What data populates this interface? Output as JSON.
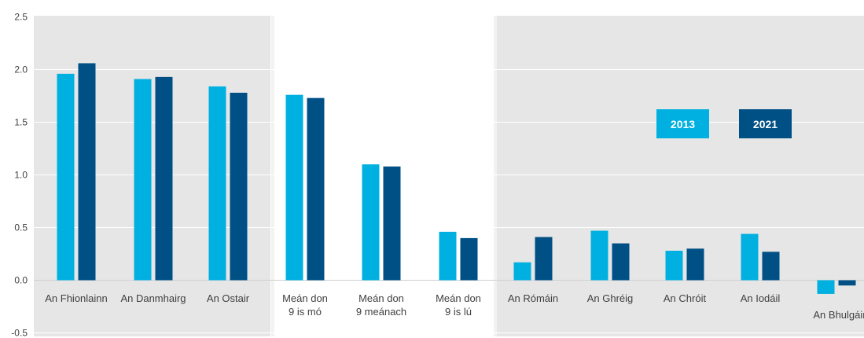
{
  "chart_data": {
    "type": "bar",
    "categories": [
      [
        "An Fhionlainn"
      ],
      [
        "An Danmhairg"
      ],
      [
        "An Ostair"
      ],
      [
        "Meán don",
        "9 is mó"
      ],
      [
        "Meán don",
        "9 meánach"
      ],
      [
        "Meán don",
        "9 is lú"
      ],
      [
        "An Rómáin"
      ],
      [
        "An Ghréig"
      ],
      [
        "An Chróit"
      ],
      [
        "An Iodáil"
      ],
      [
        "An Bhulgáir"
      ]
    ],
    "series": [
      {
        "name": "2013",
        "color": "#00b0e0",
        "values": [
          1.96,
          1.91,
          1.84,
          1.76,
          1.1,
          0.46,
          0.17,
          0.47,
          0.28,
          0.44,
          -0.13
        ]
      },
      {
        "name": "2021",
        "color": "#005085",
        "values": [
          2.06,
          1.93,
          1.78,
          1.73,
          1.08,
          0.4,
          0.41,
          0.35,
          0.3,
          0.27,
          -0.05
        ]
      }
    ],
    "yticks": [
      "2.5",
      "2.0",
      "1.5",
      "1.0",
      "0.5",
      "0.0",
      "-0.5"
    ],
    "ylim": [
      -0.5,
      2.5
    ],
    "grid": true,
    "shaded_bands": "grey background behind first three and last five categories",
    "legend_position": "top-right"
  }
}
